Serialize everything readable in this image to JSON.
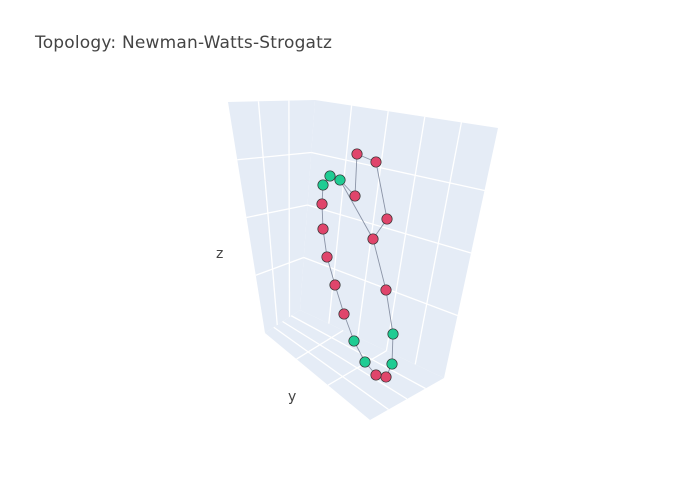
{
  "title": "Topology: Newman-Watts-Strogatz",
  "colors": {
    "pane": "#e5ecf6",
    "grid": "#ffffff",
    "edge": "#8a93a6",
    "node_red": "#e0456b",
    "node_green": "#1fcc93",
    "node_outline": "#333333"
  },
  "chart_data": {
    "type": "scatter3d",
    "title": "Topology: Newman-Watts-Strogatz",
    "axis_labels": {
      "x": "",
      "y": "y",
      "z": "z"
    },
    "grid": true,
    "tick_labels_visible": false,
    "nodes": [
      {
        "id": 0,
        "group": "red"
      },
      {
        "id": 1,
        "group": "red"
      },
      {
        "id": 2,
        "group": "red"
      },
      {
        "id": 3,
        "group": "red"
      },
      {
        "id": 4,
        "group": "red"
      },
      {
        "id": 5,
        "group": "green"
      },
      {
        "id": 6,
        "group": "green"
      },
      {
        "id": 7,
        "group": "red"
      },
      {
        "id": 8,
        "group": "red"
      },
      {
        "id": 9,
        "group": "green"
      },
      {
        "id": 10,
        "group": "green"
      },
      {
        "id": 11,
        "group": "red"
      },
      {
        "id": 12,
        "group": "red"
      },
      {
        "id": 13,
        "group": "red"
      },
      {
        "id": 14,
        "group": "red"
      },
      {
        "id": 15,
        "group": "red"
      },
      {
        "id": 16,
        "group": "green"
      },
      {
        "id": 17,
        "group": "green"
      },
      {
        "id": 18,
        "group": "green"
      },
      {
        "id": 19,
        "group": "red"
      }
    ],
    "edges": [
      [
        0,
        1
      ],
      [
        1,
        2
      ],
      [
        2,
        3
      ],
      [
        3,
        4
      ],
      [
        4,
        5
      ],
      [
        5,
        6
      ],
      [
        6,
        7
      ],
      [
        7,
        8
      ],
      [
        8,
        9
      ],
      [
        9,
        10
      ],
      [
        10,
        11
      ],
      [
        11,
        12
      ],
      [
        12,
        13
      ],
      [
        13,
        14
      ],
      [
        14,
        15
      ],
      [
        15,
        16
      ],
      [
        16,
        17
      ],
      [
        17,
        18
      ],
      [
        18,
        19
      ],
      [
        19,
        0
      ],
      [
        18,
        3
      ]
    ]
  }
}
